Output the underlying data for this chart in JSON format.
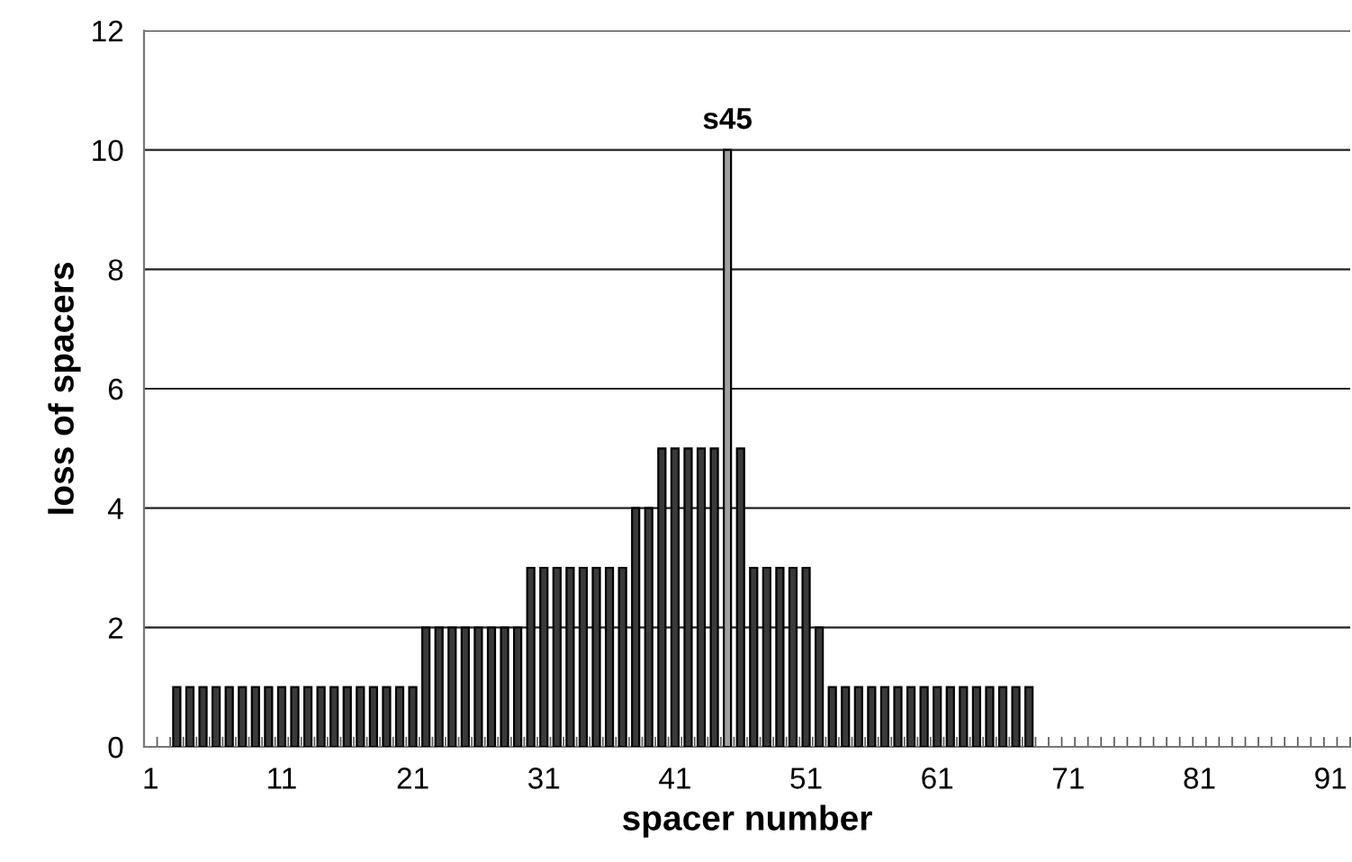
{
  "chart_data": {
    "type": "bar",
    "xlabel": "spacer number",
    "ylabel": "loss of spacers",
    "categories": [
      "1",
      null,
      null,
      null,
      null,
      null,
      null,
      null,
      null,
      null,
      "11",
      null,
      null,
      null,
      null,
      null,
      null,
      null,
      null,
      null,
      "21",
      null,
      null,
      null,
      null,
      null,
      null,
      null,
      null,
      null,
      "31",
      null,
      null,
      null,
      null,
      null,
      null,
      null,
      null,
      null,
      "41",
      null,
      null,
      null,
      null,
      null,
      null,
      null,
      null,
      null,
      "51",
      null,
      null,
      null,
      null,
      null,
      null,
      null,
      null,
      null,
      "61",
      null,
      null,
      null,
      null,
      null,
      null,
      null,
      null,
      null,
      "71",
      null,
      null,
      null,
      null,
      null,
      null,
      null,
      null,
      null,
      "81",
      null,
      null,
      null,
      null,
      null,
      null,
      null,
      null,
      null,
      "91",
      null
    ],
    "values": [
      0,
      0,
      1,
      1,
      1,
      1,
      1,
      1,
      1,
      1,
      1,
      1,
      1,
      1,
      1,
      1,
      1,
      1,
      1,
      1,
      1,
      2,
      2,
      2,
      2,
      2,
      2,
      2,
      2,
      3,
      3,
      3,
      3,
      3,
      3,
      3,
      3,
      4,
      4,
      5,
      5,
      5,
      5,
      5,
      10,
      5,
      3,
      3,
      3,
      3,
      3,
      2,
      1,
      1,
      1,
      1,
      1,
      1,
      1,
      1,
      1,
      1,
      1,
      1,
      1,
      1,
      1,
      1,
      0,
      0,
      0,
      0,
      0,
      0,
      0,
      0,
      0,
      0,
      0,
      0,
      0,
      0,
      0,
      0,
      0,
      0,
      0,
      0,
      0,
      0,
      0,
      0
    ],
    "colors": [
      "#3a3a3a",
      "#3a3a3a",
      "#3a3a3a",
      "#3a3a3a",
      "#3a3a3a",
      "#3a3a3a",
      "#3a3a3a",
      "#3a3a3a",
      "#3a3a3a",
      "#3a3a3a",
      "#3a3a3a",
      "#3a3a3a",
      "#3a3a3a",
      "#3a3a3a",
      "#3a3a3a",
      "#3a3a3a",
      "#3a3a3a",
      "#3a3a3a",
      "#3a3a3a",
      "#3a3a3a",
      "#3a3a3a",
      "#3a3a3a",
      "#3a3a3a",
      "#3a3a3a",
      "#3a3a3a",
      "#3a3a3a",
      "#3a3a3a",
      "#3a3a3a",
      "#3a3a3a",
      "#3a3a3a",
      "#3a3a3a",
      "#3a3a3a",
      "#3a3a3a",
      "#3a3a3a",
      "#3a3a3a",
      "#3a3a3a",
      "#3a3a3a",
      "#3a3a3a",
      "#3a3a3a",
      "#3a3a3a",
      "#3a3a3a",
      "#3a3a3a",
      "#3a3a3a",
      "#3a3a3a",
      "#a0a0a0",
      "#3a3a3a",
      "#3a3a3a",
      "#3a3a3a",
      "#3a3a3a",
      "#3a3a3a",
      "#3a3a3a",
      "#3a3a3a",
      "#3a3a3a",
      "#3a3a3a",
      "#3a3a3a",
      "#3a3a3a",
      "#3a3a3a",
      "#3a3a3a",
      "#3a3a3a",
      "#3a3a3a",
      "#3a3a3a",
      "#3a3a3a",
      "#3a3a3a",
      "#3a3a3a",
      "#3a3a3a",
      "#3a3a3a",
      "#3a3a3a",
      "#3a3a3a",
      "#3a3a3a",
      "#3a3a3a",
      "#3a3a3a",
      "#3a3a3a",
      "#3a3a3a",
      "#3a3a3a",
      "#3a3a3a",
      "#3a3a3a",
      "#3a3a3a",
      "#3a3a3a",
      "#3a3a3a",
      "#3a3a3a",
      "#3a3a3a",
      "#3a3a3a",
      "#3a3a3a",
      "#3a3a3a",
      "#3a3a3a",
      "#3a3a3a",
      "#3a3a3a",
      "#3a3a3a",
      "#3a3a3a",
      "#3a3a3a",
      "#3a3a3a",
      "#3a3a3a"
    ],
    "ylim": [
      0,
      12
    ],
    "yticks": [
      0,
      2,
      4,
      6,
      8,
      10,
      12
    ],
    "grid": "y",
    "annotations": [
      {
        "text": "s45",
        "y": 10
      }
    ]
  }
}
